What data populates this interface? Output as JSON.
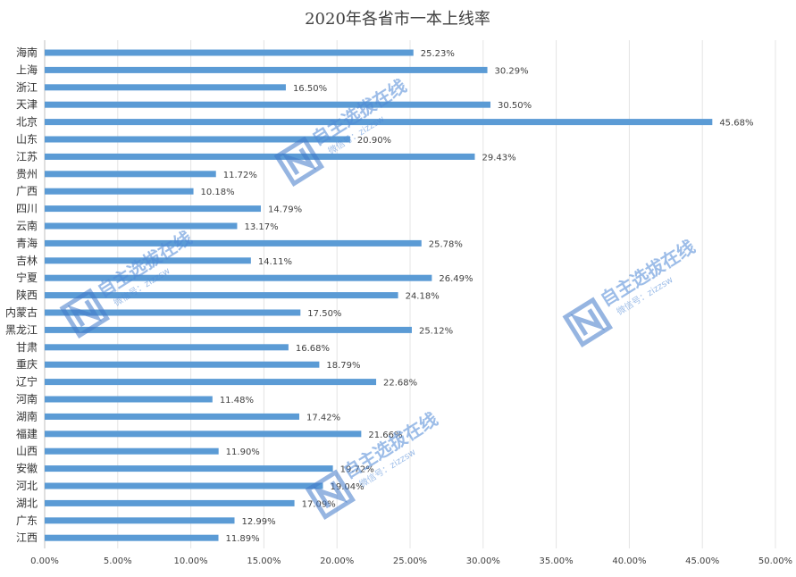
{
  "chart_data": {
    "type": "bar",
    "orientation": "horizontal",
    "title": "2020年各省市一本上线率",
    "xlabel": "",
    "ylabel": "",
    "xlim": [
      0,
      50
    ],
    "x_ticks": [
      "0.00%",
      "5.00%",
      "10.00%",
      "15.00%",
      "20.00%",
      "25.00%",
      "30.00%",
      "35.00%",
      "40.00%",
      "45.00%",
      "50.00%"
    ],
    "grid": "vertical",
    "legend": "none",
    "bar_color": "#5b9bd5",
    "categories": [
      "海南",
      "上海",
      "浙江",
      "天津",
      "北京",
      "山东",
      "江苏",
      "贵州",
      "广西",
      "四川",
      "云南",
      "青海",
      "吉林",
      "宁夏",
      "陕西",
      "内蒙古",
      "黑龙江",
      "甘肃",
      "重庆",
      "辽宁",
      "河南",
      "湖南",
      "福建",
      "山西",
      "安徽",
      "河北",
      "湖北",
      "广东",
      "江西"
    ],
    "values": [
      25.23,
      30.29,
      16.5,
      30.5,
      45.68,
      20.9,
      29.43,
      11.72,
      10.18,
      14.79,
      13.17,
      25.78,
      14.11,
      26.49,
      24.18,
      17.5,
      25.12,
      16.68,
      18.79,
      22.68,
      11.48,
      17.42,
      21.66,
      11.9,
      19.72,
      19.04,
      17.09,
      12.99,
      11.89
    ],
    "data_labels": [
      "25.23%",
      "30.29%",
      "16.50%",
      "30.50%",
      "45.68%",
      "20.90%",
      "29.43%",
      "11.72%",
      "10.18%",
      "14.79%",
      "13.17%",
      "25.78%",
      "14.11%",
      "26.49%",
      "24.18%",
      "17.50%",
      "25.12%",
      "16.68%",
      "18.79%",
      "22.68%",
      "11.48%",
      "17.42%",
      "21.66%",
      "11.90%",
      "19.72%",
      "19.04%",
      "17.09%",
      "12.99%",
      "11.89%"
    ]
  },
  "watermark": {
    "text": "自主选拔在线",
    "subtext": "微信号：zizzsw",
    "color": "#4e88d6"
  }
}
